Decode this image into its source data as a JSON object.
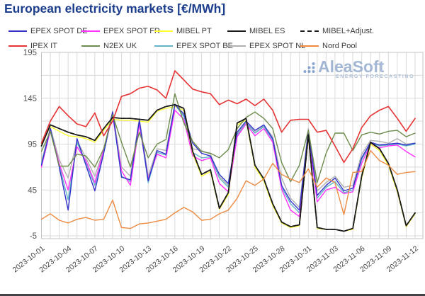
{
  "header": {
    "title": "European electricity markets [€/MWh]"
  },
  "watermark": {
    "brand": "AleaSoft",
    "tagline": "ENERGY FORECASTING",
    "logo_color": "#4d79b8",
    "text_color": "#97aed0"
  },
  "chart_data": {
    "type": "line",
    "title": "European electricity markets [€/MWh]",
    "xlabel": "",
    "ylabel": "",
    "ylim": [
      -5,
      195
    ],
    "yticks_labeled": [
      195,
      145,
      95,
      45,
      -5
    ],
    "grid_step": 25,
    "grid_color": "#d9d9d9",
    "x_tick_every": 3,
    "x": [
      "2023-10-01",
      "2023-10-02",
      "2023-10-03",
      "2023-10-04",
      "2023-10-05",
      "2023-10-06",
      "2023-10-07",
      "2023-10-08",
      "2023-10-09",
      "2023-10-10",
      "2023-10-11",
      "2023-10-12",
      "2023-10-13",
      "2023-10-14",
      "2023-10-15",
      "2023-10-16",
      "2023-10-17",
      "2023-10-18",
      "2023-10-19",
      "2023-10-20",
      "2023-10-21",
      "2023-10-22",
      "2023-10-23",
      "2023-10-24",
      "2023-10-25",
      "2023-10-26",
      "2023-10-27",
      "2023-10-28",
      "2023-10-29",
      "2023-10-30",
      "2023-10-31",
      "2023-11-01",
      "2023-11-02",
      "2023-11-03",
      "2023-11-04",
      "2023-11-05",
      "2023-11-06",
      "2023-11-07",
      "2023-11-08",
      "2023-11-09",
      "2023-11-10",
      "2023-11-11",
      "2023-11-12"
    ],
    "series": [
      {
        "name": "EPEX SPOT DE",
        "color": "#3333cc",
        "dash": false,
        "values": [
          72,
          112,
          70,
          23,
          101,
          72,
          44,
          85,
          130,
          59,
          56,
          121,
          55,
          88,
          84,
          138,
          128,
          96,
          85,
          82,
          62,
          52,
          108,
          120,
          110,
          116,
          101,
          50,
          33,
          23,
          109,
          39,
          50,
          58,
          44,
          47,
          80,
          97,
          94,
          95,
          96,
          94,
          96
        ]
      },
      {
        "name": "EPEX SPOT FR",
        "color": "#ff33ff",
        "dash": false,
        "values": [
          70,
          110,
          74,
          45,
          92,
          77,
          53,
          88,
          126,
          66,
          50,
          117,
          57,
          84,
          80,
          132,
          122,
          82,
          77,
          80,
          52,
          43,
          103,
          117,
          104,
          112,
          97,
          46,
          23,
          16,
          107,
          32,
          45,
          48,
          41,
          43,
          74,
          95,
          91,
          93,
          94,
          87,
          81
        ]
      },
      {
        "name": "MIBEL PT",
        "color": "#ffff33",
        "dash": false,
        "values": [
          95,
          114,
          109,
          104,
          103,
          101,
          97,
          110,
          122,
          121,
          121,
          120,
          119,
          131,
          134,
          136,
          132,
          85,
          60,
          65,
          24,
          40,
          116,
          121,
          70,
          55,
          28,
          9,
          4,
          6,
          103,
          3,
          2,
          2,
          0,
          2,
          58,
          95,
          88,
          72,
          43,
          5,
          19
        ]
      },
      {
        "name": "MIBEL ES",
        "color": "#1a1a1a",
        "dash": false,
        "values": [
          93,
          116,
          112,
          108,
          105,
          103,
          99,
          112,
          124,
          123,
          123,
          122,
          121,
          132,
          136,
          138,
          134,
          87,
          62,
          67,
          25,
          42,
          118,
          123,
          72,
          57,
          30,
          10,
          5,
          7,
          105,
          4,
          2,
          2,
          0,
          3,
          60,
          97,
          90,
          74,
          45,
          6,
          20
        ]
      },
      {
        "name": "MIBEL+Adjust.",
        "color": "#1a1a1a",
        "dash": true,
        "values": [
          93,
          116,
          112,
          108,
          105,
          103,
          99,
          112,
          124,
          123,
          123,
          122,
          121,
          132,
          136,
          138,
          134,
          87,
          62,
          67,
          25,
          42,
          118,
          123,
          72,
          57,
          30,
          10,
          5,
          7,
          105,
          4,
          2,
          2,
          0,
          3,
          60,
          97,
          90,
          74,
          45,
          6,
          20
        ]
      },
      {
        "name": "IPEX IT",
        "color": "#e63333",
        "dash": false,
        "values": [
          96,
          120,
          136,
          126,
          117,
          114,
          129,
          104,
          120,
          147,
          150,
          156,
          158,
          154,
          145,
          175,
          165,
          155,
          152,
          150,
          138,
          143,
          139,
          144,
          137,
          144,
          132,
          108,
          121,
          122,
          122,
          108,
          110,
          93,
          75,
          90,
          113,
          126,
          132,
          136,
          123,
          109,
          123
        ]
      },
      {
        "name": "N2EX UK",
        "color": "#6d8c4c",
        "dash": false,
        "values": [
          87,
          109,
          71,
          71,
          84,
          82,
          70,
          90,
          127,
          97,
          70,
          108,
          80,
          95,
          100,
          150,
          118,
          98,
          87,
          85,
          80,
          89,
          112,
          124,
          130,
          123,
          112,
          75,
          54,
          72,
          110,
          53,
          85,
          107,
          107,
          88,
          105,
          108,
          106,
          109,
          110,
          103,
          107
        ]
      },
      {
        "name": "EPEX SPOT BE",
        "color": "#62b4c9",
        "dash": false,
        "values": [
          74,
          111,
          72,
          34,
          97,
          75,
          50,
          86,
          128,
          60,
          54,
          119,
          53,
          86,
          83,
          138,
          125,
          86,
          80,
          81,
          58,
          48,
          105,
          118,
          107,
          114,
          99,
          48,
          30,
          20,
          108,
          36,
          48,
          54,
          42,
          45,
          78,
          96,
          93,
          94,
          95,
          93,
          95
        ]
      },
      {
        "name": "EPEX SPOT NL",
        "color": "#b0b0b0",
        "dash": false,
        "values": [
          76,
          113,
          78,
          58,
          99,
          80,
          60,
          89,
          131,
          70,
          60,
          123,
          60,
          90,
          88,
          139,
          126,
          90,
          88,
          84,
          60,
          50,
          106,
          119,
          108,
          115,
          103,
          58,
          36,
          26,
          112,
          44,
          53,
          60,
          48,
          50,
          84,
          99,
          98,
          96,
          101,
          95,
          96
        ]
      },
      {
        "name": "Nord Pool",
        "color": "#ed8b42",
        "dash": false,
        "values": [
          13,
          19,
          12,
          9,
          13,
          15,
          12,
          13,
          34,
          4,
          3,
          8,
          9,
          11,
          13,
          20,
          26,
          21,
          12,
          13,
          19,
          23,
          36,
          55,
          50,
          57,
          74,
          62,
          57,
          53,
          68,
          48,
          58,
          53,
          18,
          64,
          65,
          88,
          77,
          72,
          62,
          64,
          65
        ]
      }
    ],
    "legend_rows": [
      [
        0,
        1,
        2,
        3,
        4
      ],
      [
        5,
        6,
        7,
        8,
        9
      ]
    ]
  }
}
